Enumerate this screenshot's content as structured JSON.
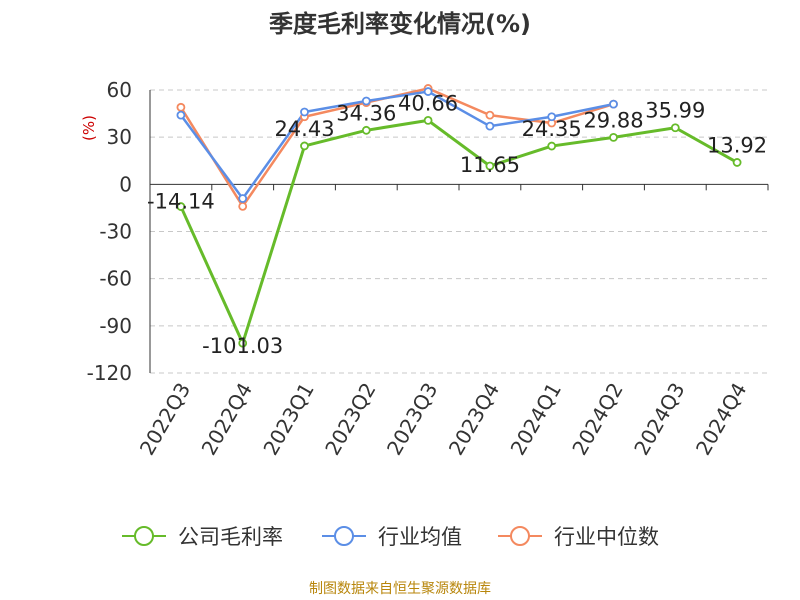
{
  "chart_data": {
    "type": "line",
    "title": "季度毛利率变化情况(%)",
    "ylabel": "(%)",
    "categories": [
      "2022Q3",
      "2022Q4",
      "2023Q1",
      "2023Q2",
      "2023Q3",
      "2023Q4",
      "2024Q1",
      "2024Q2",
      "2024Q3",
      "2024Q4"
    ],
    "y_ticks": [
      60,
      30,
      0,
      -30,
      -60,
      -90,
      -120
    ],
    "ylim": [
      -120,
      60
    ],
    "grid": true,
    "legend_position": "bottom",
    "series": [
      {
        "name": "公司毛利率",
        "color": "#66bb2a",
        "values": [
          -14.14,
          -101.03,
          24.43,
          34.36,
          40.66,
          11.65,
          24.35,
          29.88,
          35.99,
          13.92
        ],
        "labels": [
          "-14.14",
          "-101.03",
          "24.43",
          "34.36",
          "40.66",
          "11.65",
          "24.35",
          "29.88",
          "35.99",
          "13.92"
        ]
      },
      {
        "name": "行业均值",
        "color": "#5b8ee6",
        "values": [
          44,
          -9,
          46,
          53,
          59,
          37,
          43,
          51,
          null,
          null
        ]
      },
      {
        "name": "行业中位数",
        "color": "#f4895f",
        "values": [
          49,
          -14,
          43,
          52,
          61,
          44,
          39,
          51,
          null,
          null
        ]
      }
    ]
  },
  "footer": "制图数据来自恒生聚源数据库"
}
